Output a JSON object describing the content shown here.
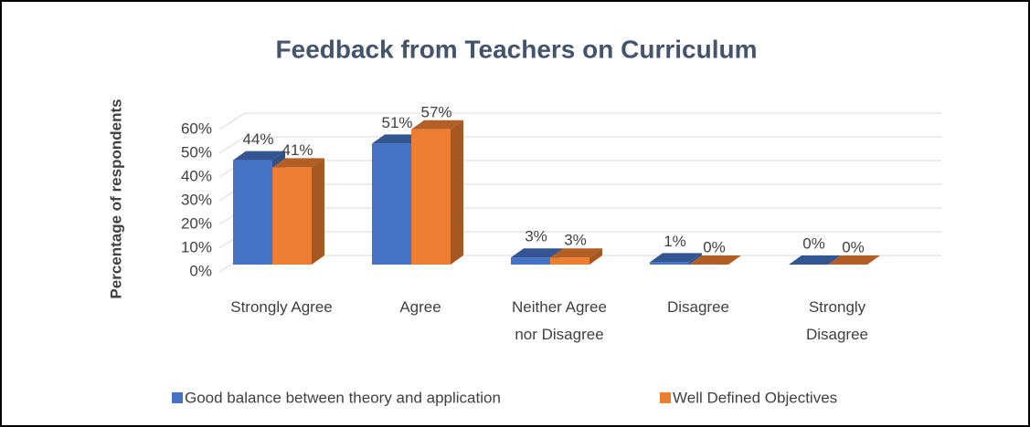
{
  "chart_data": {
    "type": "bar3d",
    "title": "Feedback from Teachers on Curriculum",
    "y_label": "Percentage of respondents",
    "categories": [
      "Strongly Agree",
      "Agree",
      "Neither Agree\nnor Disagree",
      "Disagree",
      "Strongly\nDisagree"
    ],
    "series": [
      {
        "name": "Good balance between theory and application",
        "color": "#4472c4",
        "values": [
          44,
          51,
          3,
          1,
          0
        ],
        "value_labels": [
          "44%",
          "51%",
          "3%",
          "1%",
          "0%"
        ]
      },
      {
        "name": "Well Defined Objectives",
        "color": "#ed7d31",
        "values": [
          41,
          57,
          3,
          0,
          0
        ],
        "value_labels": [
          "41%",
          "57%",
          "3%",
          "0%",
          "0%"
        ]
      }
    ],
    "ylim": [
      0,
      60
    ],
    "yticks": [
      {
        "value": 0,
        "label": "0%"
      },
      {
        "value": 10,
        "label": "10%"
      },
      {
        "value": 20,
        "label": "20%"
      },
      {
        "value": 30,
        "label": "30%"
      },
      {
        "value": 40,
        "label": "40%"
      },
      {
        "value": 50,
        "label": "50%"
      },
      {
        "value": 60,
        "label": "60%"
      }
    ],
    "grid": true,
    "legend": "bottom"
  }
}
